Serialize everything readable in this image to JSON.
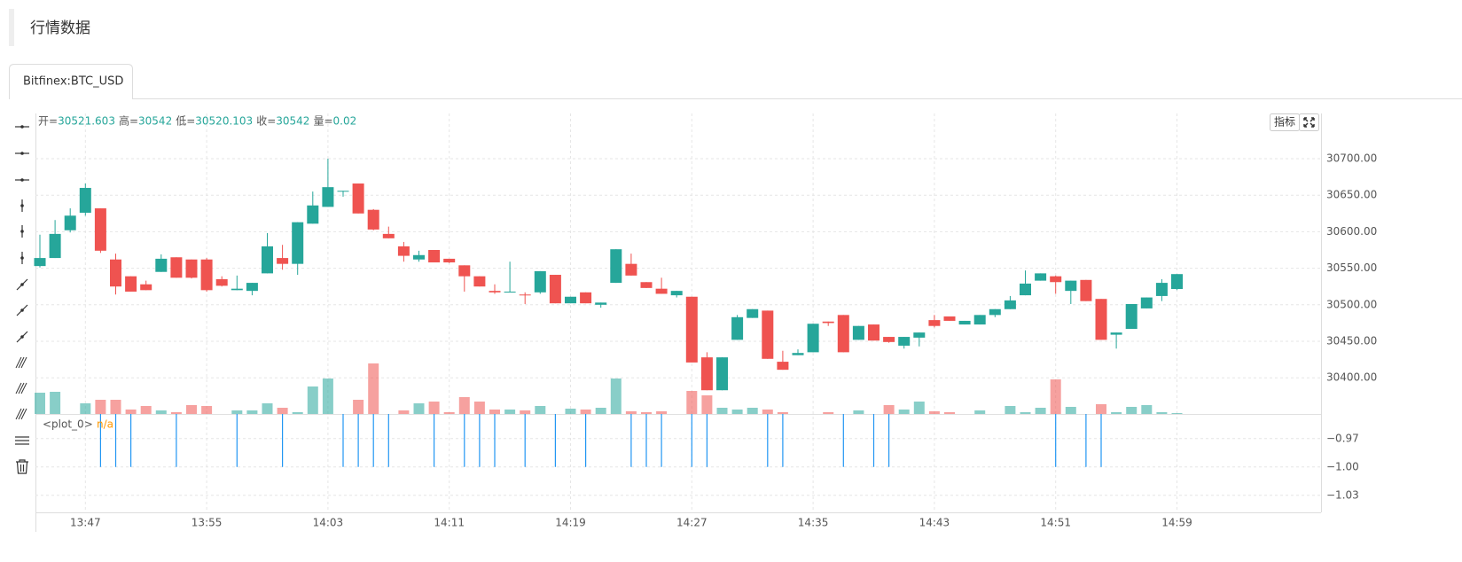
{
  "header": {
    "title": "行情数据"
  },
  "tabs": [
    "Bitfinex:BTC_USD"
  ],
  "chart_data": {
    "type": "candlestick",
    "legend_labels": [
      "开=",
      "高=",
      "低=",
      "收=",
      "量="
    ],
    "indicator_button": "指标",
    "categories": [
      null,
      null,
      null,
      "13:47",
      null,
      null,
      null,
      null,
      null,
      null,
      null,
      "13:55",
      null,
      null,
      null,
      null,
      null,
      null,
      null,
      "14:03",
      null,
      null,
      null,
      null,
      null,
      null,
      null,
      "14:11",
      null,
      null,
      null,
      null,
      null,
      null,
      null,
      "14:19",
      null,
      null,
      null,
      null,
      null,
      null,
      null,
      "14:27",
      null,
      null,
      null,
      null,
      null,
      null,
      null,
      "14:35",
      null,
      null,
      null,
      null,
      null,
      null,
      null,
      "14:43",
      null,
      null,
      null,
      null,
      null,
      null,
      null,
      "14:51",
      null,
      null,
      null,
      null,
      null,
      null,
      null,
      "14:59"
    ],
    "open": [
      30553,
      30564,
      30602,
      30626,
      30632,
      30562,
      30539,
      30528,
      30545,
      30565,
      30562,
      30562,
      30535,
      30520,
      30519,
      30543,
      30564,
      30556,
      30611,
      30634,
      30655,
      30666,
      30630,
      30597,
      30580,
      30562,
      30575,
      30563,
      30554,
      30539,
      30519,
      30517,
      30514,
      30517,
      30541,
      30502,
      30517,
      30500,
      30530,
      30556,
      30531,
      30522,
      30513,
      30511,
      30428,
      30383,
      30452,
      30482,
      30492,
      30422,
      30431,
      30435,
      30477,
      30486,
      30452,
      30473,
      30456,
      30444,
      30455,
      30479,
      30484,
      30473,
      30473,
      30486,
      30494,
      30513,
      30533,
      30539,
      30519,
      30534,
      30508,
      30459,
      30467,
      30495,
      30512,
      30521.603
    ],
    "high": [
      30596,
      30616,
      30632,
      30666,
      30632,
      30570,
      30539,
      30533,
      30569,
      30565,
      30562,
      30564,
      30539,
      30540,
      30530,
      30598,
      30582,
      30613,
      30655,
      30700,
      30656,
      30666,
      30631,
      30607,
      30586,
      30574,
      30575,
      30563,
      30554,
      30539,
      30528,
      30559,
      30517,
      30546,
      30541,
      30511,
      30517,
      30503,
      30576,
      30570,
      30531,
      30537,
      30519,
      30511,
      30435,
      30428,
      30486,
      30494,
      30492,
      30437,
      30439,
      30474,
      30477,
      30486,
      30471,
      30473,
      30456,
      30456,
      30462,
      30486,
      30484,
      30478,
      30486,
      30494,
      30512,
      30547,
      30543,
      30540,
      30533,
      30534,
      30508,
      30462,
      30501,
      30510,
      30535,
      30542
    ],
    "low": [
      30551,
      30564,
      30599,
      30622,
      30571,
      30514,
      30518,
      30520,
      30545,
      30537,
      30536,
      30518,
      30525,
      30520,
      30513,
      30543,
      30548,
      30541,
      30611,
      30634,
      30648,
      30625,
      30602,
      30591,
      30559,
      30559,
      30558,
      30557,
      30518,
      30525,
      30515,
      30517,
      30501,
      30515,
      30502,
      30502,
      30502,
      30496,
      30530,
      30540,
      30523,
      30515,
      30510,
      30421,
      30383,
      30383,
      30452,
      30482,
      30426,
      30411,
      30431,
      30435,
      30471,
      30435,
      30452,
      30451,
      30448,
      30440,
      30443,
      30469,
      30478,
      30473,
      30473,
      30483,
      30494,
      30513,
      30533,
      30515,
      30501,
      30505,
      30452,
      30440,
      30467,
      30495,
      30505,
      30520.103
    ],
    "close": [
      30564,
      30597,
      30622,
      30660,
      30574,
      30525,
      30518,
      30520,
      30563,
      30537,
      30537,
      30520,
      30526,
      30522,
      30530,
      30580,
      30556,
      30613,
      30636,
      30661,
      30656,
      30625,
      30603,
      30591,
      30567,
      30568,
      30558,
      30558,
      30539,
      30525,
      30517,
      30518,
      30513,
      30546,
      30502,
      30511,
      30502,
      30503,
      30576,
      30540,
      30523,
      30515,
      30519,
      30421,
      30383,
      30428,
      30483,
      30494,
      30426,
      30411,
      30434,
      30474,
      30475,
      30435,
      30471,
      30451,
      30449,
      30456,
      30462,
      30471,
      30478,
      30478,
      30486,
      30494,
      30506,
      30529,
      30543,
      30531,
      30533,
      30505,
      30452,
      30462,
      30501,
      30510,
      30530,
      30542
    ],
    "volume": [
      0.48,
      0.5,
      0,
      0.24,
      0.32,
      0.32,
      0.1,
      0.18,
      0.08,
      0.04,
      0.2,
      0.18,
      0,
      0.08,
      0.08,
      0.24,
      0.14,
      0.04,
      0.62,
      0.8,
      0,
      0.32,
      1.14,
      0,
      0.08,
      0.24,
      0.28,
      0.04,
      0.38,
      0.28,
      0.1,
      0.1,
      0.08,
      0.18,
      0,
      0.12,
      0.1,
      0.14,
      0.8,
      0.06,
      0.04,
      0.06,
      0,
      0.52,
      0.42,
      0.14,
      0.1,
      0.14,
      0.1,
      0.04,
      0,
      0,
      0.04,
      0,
      0.08,
      0,
      0.2,
      0.1,
      0.28,
      0.06,
      0.04,
      0,
      0.08,
      0,
      0.18,
      0.04,
      0.14,
      0.78,
      0.16,
      0,
      0.22,
      0.04,
      0.16,
      0.2,
      0.04,
      0.02
    ],
    "up_color": "#26a69a",
    "down_color": "#ef5350",
    "ylim": [
      30350.5,
      30761.9
    ],
    "yticks": [
      {
        "value": 30400,
        "label": "30400.00"
      },
      {
        "value": 30450,
        "label": "30450.00"
      },
      {
        "value": 30500,
        "label": "30500.00"
      },
      {
        "value": 30550,
        "label": "30550.00"
      },
      {
        "value": 30600,
        "label": "30600.00"
      },
      {
        "value": 30650,
        "label": "30650.00"
      },
      {
        "value": 30700,
        "label": "30700.00"
      }
    ],
    "grid": true,
    "indicator": {
      "name": "<plot_0>",
      "status": "n/a",
      "color": "#2196f3",
      "values": [
        null,
        null,
        null,
        null,
        -1,
        -1,
        -1,
        null,
        null,
        -1,
        null,
        null,
        null,
        -1,
        null,
        null,
        -1,
        null,
        null,
        null,
        -1,
        -1,
        -1,
        -1,
        null,
        null,
        -1,
        null,
        -1,
        -1,
        -1,
        null,
        -1,
        null,
        -1,
        null,
        -1,
        null,
        null,
        -1,
        -1,
        -1,
        null,
        -1,
        -1,
        null,
        null,
        null,
        -1,
        -1,
        null,
        null,
        null,
        -1,
        null,
        -1,
        -1,
        null,
        null,
        null,
        null,
        null,
        null,
        null,
        null,
        null,
        null,
        -1,
        null,
        -1,
        -1,
        null,
        null,
        null,
        null,
        null
      ],
      "ylim": [
        -1.048,
        -0.944
      ],
      "yticks": [
        {
          "value": -1.03,
          "label": "−1.03"
        },
        {
          "value": -1.0,
          "label": "−1.00"
        },
        {
          "value": -0.97,
          "label": "−0.97"
        }
      ]
    }
  }
}
